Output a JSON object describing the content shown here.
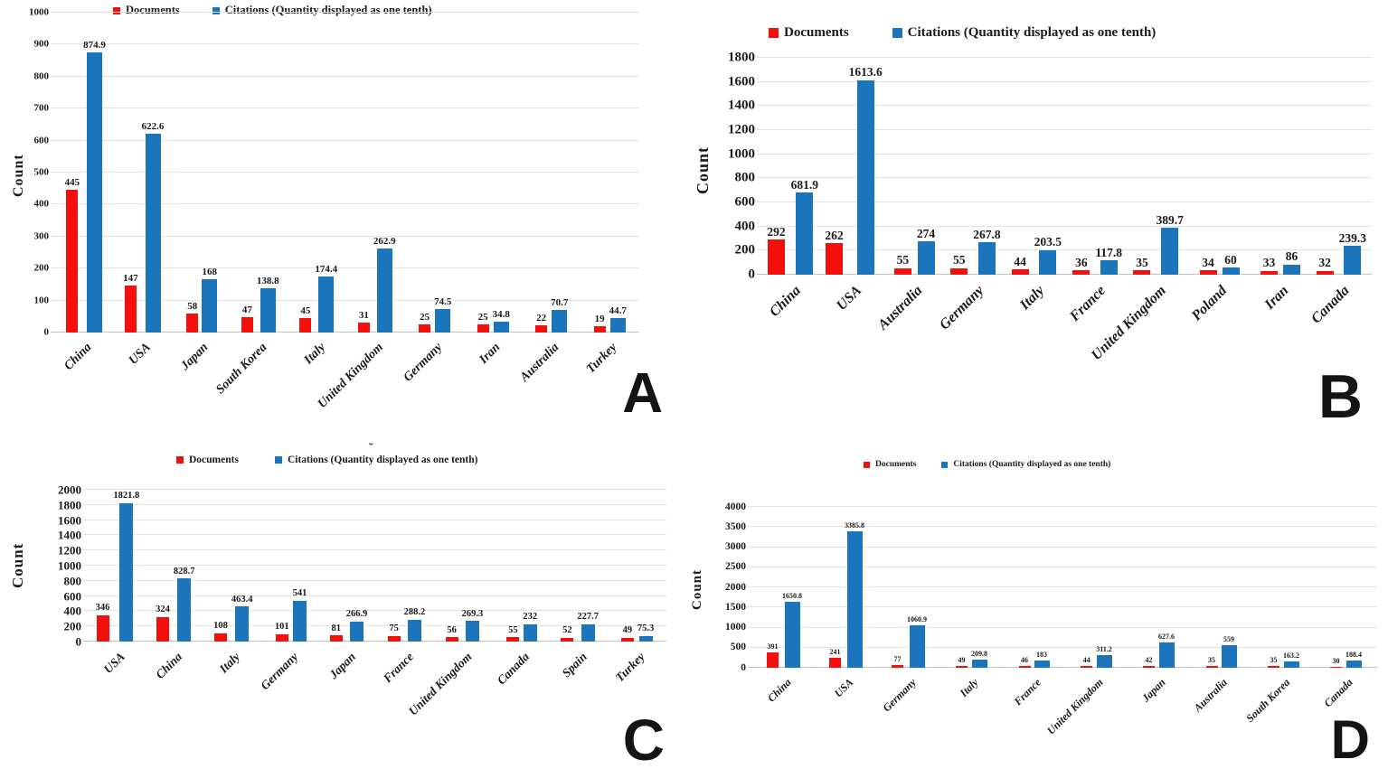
{
  "colors": {
    "documents": "#f3100c",
    "citations": "#1b75bc",
    "gridline": "#e3e3e3",
    "text": "#1a1a1a"
  },
  "chart_data": [
    {
      "type": "bar",
      "letter": "A",
      "ylabel": "Count",
      "legend": {
        "documents": "Documents",
        "citations": "Citations (Quantity displayed as one tenth)"
      },
      "categories": [
        "China",
        "USA",
        "Japan",
        "South Korea",
        "Italy",
        "United Kingdom",
        "Germany",
        "Iran",
        "Australia",
        "Turkey"
      ],
      "series": [
        {
          "name": "Documents",
          "values": [
            445,
            147,
            58,
            47,
            45,
            31,
            25,
            25,
            22,
            19
          ]
        },
        {
          "name": "Citations (Quantity displayed as one tenth)",
          "values": [
            874.9,
            622.6,
            168,
            138.8,
            174.4,
            262.9,
            74.5,
            34.8,
            70.7,
            44.7
          ]
        }
      ],
      "ylim": [
        0,
        1000
      ],
      "ystep": 100,
      "grid": true,
      "legend_position": "top"
    },
    {
      "type": "bar",
      "letter": "B",
      "ylabel": "Count",
      "legend": {
        "documents": "Documents",
        "citations": "Citations (Quantity displayed as one tenth)"
      },
      "categories": [
        "China",
        "USA",
        "Australia",
        "Germany",
        "Italy",
        "France",
        "United Kingdom",
        "Poland",
        "Iran",
        "Canada"
      ],
      "series": [
        {
          "name": "Documents",
          "values": [
            292,
            262,
            55,
            55,
            44,
            36,
            35,
            34,
            33,
            32
          ]
        },
        {
          "name": "Citations (Quantity displayed as one tenth)",
          "values": [
            681.9,
            1613.6,
            274,
            267.8,
            203.5,
            117.8,
            389.7,
            60,
            86,
            239.3
          ]
        }
      ],
      "ylim": [
        0,
        1800
      ],
      "ystep": 200,
      "grid": true,
      "legend_position": "top"
    },
    {
      "type": "bar",
      "letter": "C",
      "ylabel": "Count",
      "annotation": "˘",
      "legend": {
        "documents": "Documents",
        "citations": "Citations (Quantity displayed as one tenth)"
      },
      "categories": [
        "USA",
        "China",
        "Italy",
        "Germany",
        "Japan",
        "France",
        "United Kingdom",
        "Canada",
        "Spain",
        "Turkey"
      ],
      "series": [
        {
          "name": "Documents",
          "values": [
            346,
            324,
            108,
            101,
            81,
            75,
            56,
            55,
            52,
            49
          ]
        },
        {
          "name": "Citations (Quantity displayed as one tenth)",
          "values": [
            1821.8,
            828.7,
            463.4,
            541,
            266.9,
            288.2,
            269.3,
            232,
            227.7,
            75.3
          ]
        }
      ],
      "ylim": [
        0,
        2000
      ],
      "ystep": 200,
      "grid": true,
      "legend_position": "top"
    },
    {
      "type": "bar",
      "letter": "D",
      "ylabel": "Count",
      "legend": {
        "documents": "Documents",
        "citations": "Citations (Quantity displayed as one tenth)"
      },
      "categories": [
        "China",
        "USA",
        "Germany",
        "Italy",
        "France",
        "United Kingdom",
        "Japan",
        "Australia",
        "South Korea",
        "Canada"
      ],
      "series": [
        {
          "name": "Documents",
          "values": [
            391,
            241,
            77,
            49,
            46,
            44,
            42,
            35,
            35,
            30
          ]
        },
        {
          "name": "Citations (Quantity displayed as one tenth)",
          "values": [
            1650.8,
            3385.8,
            1060.9,
            209.8,
            183,
            311.2,
            627.6,
            559,
            163.2,
            188.4
          ]
        }
      ],
      "ylim": [
        0,
        4000
      ],
      "ystep": 500,
      "grid": true,
      "legend_position": "top"
    }
  ]
}
